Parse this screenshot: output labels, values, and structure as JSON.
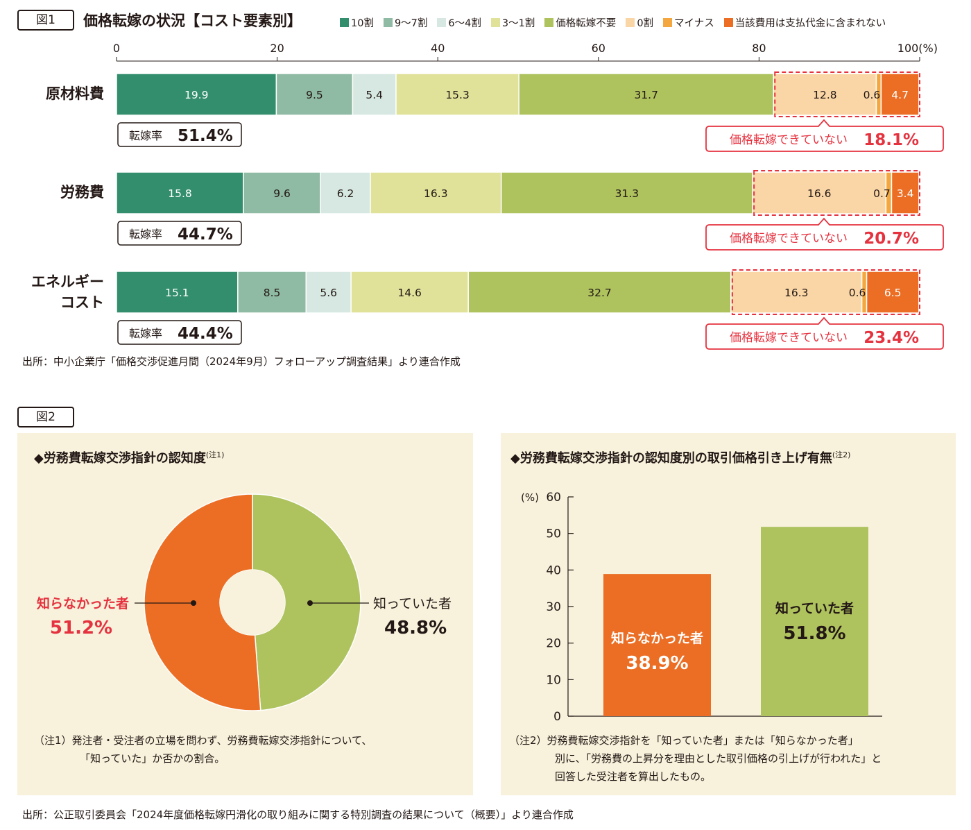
{
  "fig1": {
    "tag": "図1",
    "title": "価格転嫁の状況【コスト要素別】",
    "legend": [
      {
        "label": "10割",
        "color": "#338e6d"
      },
      {
        "label": "9〜7割",
        "color": "#8fbaa3"
      },
      {
        "label": "6〜4割",
        "color": "#d6e8e1"
      },
      {
        "label": "3〜1割",
        "color": "#e1e29a"
      },
      {
        "label": "価格転嫁不要",
        "color": "#aec25e"
      },
      {
        "label": "0割",
        "color": "#fad6a6"
      },
      {
        "label": "マイナス",
        "color": "#f3a73e"
      },
      {
        "label": "当該費用は支払代金に含まれない",
        "color": "#eb6e24"
      }
    ],
    "axis_ticks": [
      "0",
      "20",
      "40",
      "60",
      "80",
      "100(%)"
    ],
    "rate_label": "転嫁率",
    "not_passed_label": "価格転嫁できていない",
    "source": "出所：中小企業庁「価格交渉促進月間（2024年9月）フォローアップ調査結果」より連合作成"
  },
  "fig2": {
    "tag": "図2",
    "left_title": "◆労務費転嫁交渉指針の認知度",
    "left_note_ref": "(注1)",
    "right_title": "◆労務費転嫁交渉指針の認知度別の取引価格引き上げ有無",
    "right_note_ref": "(注2)",
    "note1_line1": "（注1）発注者・受注者の立場を問わず、労務費転嫁交渉指針について、",
    "note1_line2": "「知っていた」か否かの割合。",
    "note2_line1": "（注2）労務費転嫁交渉指針を「知っていた者」または「知らなかった者」",
    "note2_line2": "別に、「労務費の上昇分を理由とした取引価格の引上げが行われた」と",
    "note2_line3": "回答した受注者を算出したもの。",
    "source": "出所：公正取引委員会「2024年度価格転嫁円滑化の取り組みに関する特別調査の結果について（概要）」より連合作成"
  },
  "chart_data": [
    {
      "type": "bar",
      "orientation": "horizontal-stacked",
      "title": "価格転嫁の状況【コスト要素別】",
      "xlim": [
        0,
        100
      ],
      "xlabel": "(%)",
      "categories": [
        "原材料費",
        "労務費",
        "エネルギーコスト"
      ],
      "series": [
        {
          "name": "10割",
          "values": [
            19.9,
            15.8,
            15.1
          ]
        },
        {
          "name": "9〜7割",
          "values": [
            9.5,
            9.6,
            8.5
          ]
        },
        {
          "name": "6〜4割",
          "values": [
            5.4,
            6.2,
            5.6
          ]
        },
        {
          "name": "3〜1割",
          "values": [
            15.3,
            16.3,
            14.6
          ]
        },
        {
          "name": "価格転嫁不要",
          "values": [
            31.7,
            31.3,
            32.7
          ]
        },
        {
          "name": "0割",
          "values": [
            12.8,
            16.6,
            16.3
          ]
        },
        {
          "name": "マイナス",
          "values": [
            0.6,
            0.7,
            0.6
          ]
        },
        {
          "name": "当該費用は支払代金に含まれない",
          "values": [
            4.7,
            3.4,
            6.5
          ]
        }
      ],
      "rates": [
        "51.4%",
        "44.7%",
        "44.4%"
      ],
      "not_passed": [
        "18.1%",
        "20.7%",
        "23.4%"
      ]
    },
    {
      "type": "pie",
      "title": "労務費転嫁交渉指針の認知度",
      "slices": [
        {
          "name": "知っていた者",
          "value": 48.8,
          "label": "48.8%",
          "color": "#aec25e"
        },
        {
          "name": "知らなかった者",
          "value": 51.2,
          "label": "51.2%",
          "color": "#eb6e24"
        }
      ]
    },
    {
      "type": "bar",
      "title": "労務費転嫁交渉指針の認知度別の取引価格引き上げ有無",
      "ylabel": "(%)",
      "ylim": [
        0,
        60
      ],
      "yticks": [
        "0",
        "10",
        "20",
        "30",
        "40",
        "50",
        "60"
      ],
      "categories": [
        "知らなかった者",
        "知っていた者"
      ],
      "values": [
        38.9,
        51.8
      ],
      "labels": [
        "38.9%",
        "51.8%"
      ],
      "colors": [
        "#eb6e24",
        "#aec25e"
      ]
    }
  ]
}
